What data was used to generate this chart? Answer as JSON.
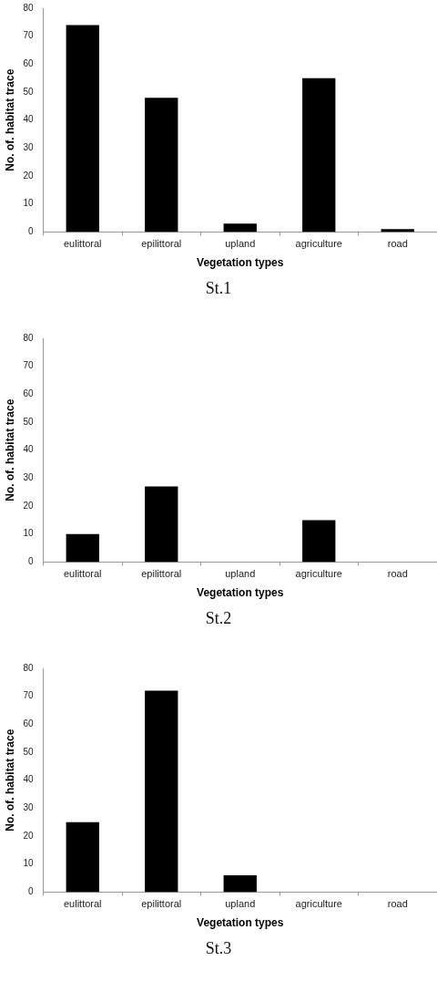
{
  "chart_data": [
    {
      "type": "bar",
      "categories": [
        "eulittoral",
        "epilittoral",
        "upland",
        "agriculture",
        "road"
      ],
      "values": [
        74,
        48,
        3,
        55,
        1
      ],
      "color": "#000000",
      "ylim": [
        0,
        80
      ],
      "yticks": [
        0,
        10,
        20,
        30,
        40,
        50,
        60,
        70,
        80
      ],
      "xlabel": "Vegetation types",
      "ylabel": "No. of. habitat trace",
      "annotations": [
        "St.1"
      ]
    },
    {
      "type": "bar",
      "categories": [
        "eulittoral",
        "epilittoral",
        "upland",
        "agriculture",
        "road"
      ],
      "values": [
        10,
        27,
        0,
        15,
        0
      ],
      "color": "#000000",
      "ylim": [
        0,
        80
      ],
      "yticks": [
        0,
        10,
        20,
        30,
        40,
        50,
        60,
        70,
        80
      ],
      "xlabel": "Vegetation types",
      "ylabel": "No. of. habitat trace",
      "annotations": [
        "St.2"
      ]
    },
    {
      "type": "bar",
      "categories": [
        "eulittoral",
        "epilittoral",
        "upland",
        "agriculture",
        "road"
      ],
      "values": [
        25,
        72,
        6,
        0,
        0
      ],
      "color": "#000000",
      "ylim": [
        0,
        80
      ],
      "yticks": [
        0,
        10,
        20,
        30,
        40,
        50,
        60,
        70,
        80
      ],
      "xlabel": "Vegetation types",
      "ylabel": "No. of. habitat trace",
      "annotations": [
        "St.3"
      ]
    }
  ]
}
